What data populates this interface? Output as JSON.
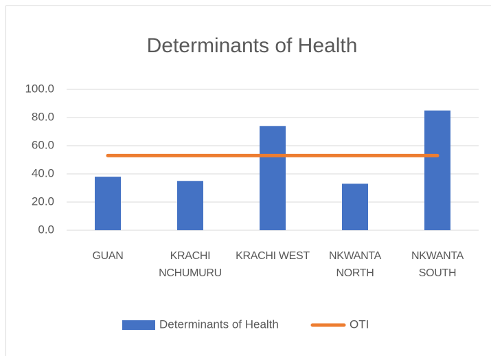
{
  "chart_data": {
    "type": "bar",
    "title": "Determinants of Health",
    "categories": [
      "GUAN",
      "KRACHI NCHUMURU",
      "KRACHI WEST",
      "NKWANTA NORTH",
      "NKWANTA SOUTH"
    ],
    "series": [
      {
        "name": "Determinants of Health",
        "type": "bar",
        "color": "#4472c4",
        "values": [
          38,
          35,
          74,
          33,
          85
        ]
      },
      {
        "name": "OTI",
        "type": "line",
        "color": "#ed7d31",
        "values": [
          53,
          53,
          53,
          53,
          53
        ]
      }
    ],
    "ylim": [
      0,
      100
    ],
    "yticks": [
      {
        "value": 0,
        "label": "0.0"
      },
      {
        "value": 20,
        "label": "20.0"
      },
      {
        "value": 40,
        "label": "40.0"
      },
      {
        "value": 60,
        "label": "60.0"
      },
      {
        "value": 80,
        "label": "80.0"
      },
      {
        "value": 100,
        "label": "100.0"
      }
    ],
    "grid": true,
    "legend": "bottom"
  }
}
